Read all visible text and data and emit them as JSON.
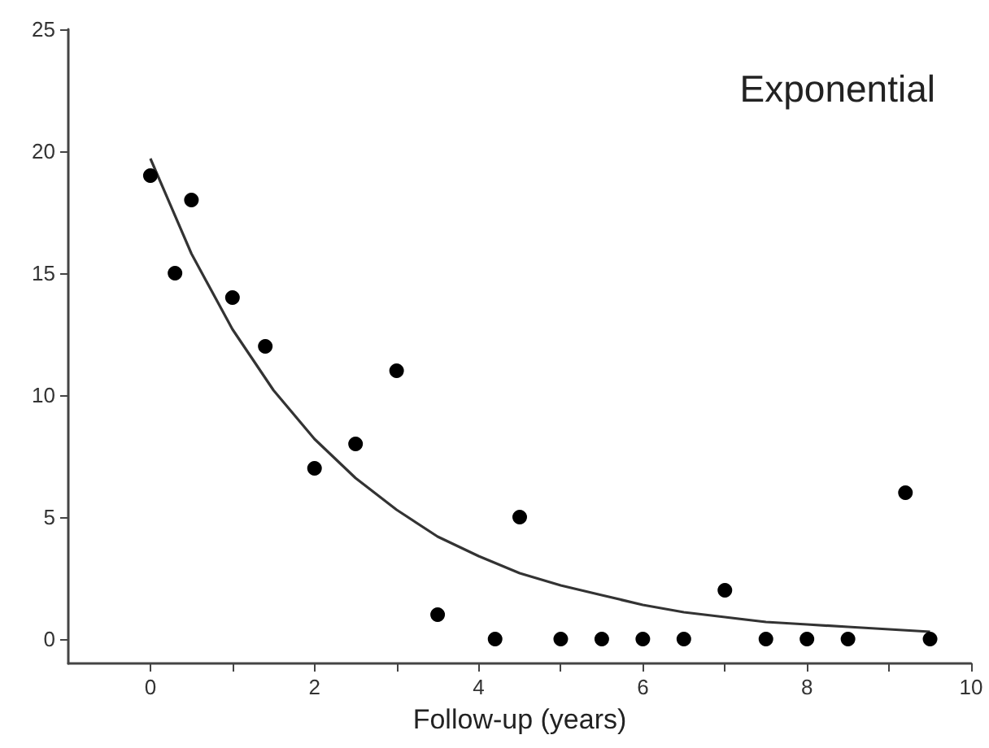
{
  "chart_data": {
    "type": "scatter",
    "title": "Exponential",
    "xlabel": "Follow-up (years)",
    "xlim": [
      -1,
      10
    ],
    "xticks": [
      0,
      {
        "value": 1,
        "label": null
      },
      2,
      {
        "value": 3,
        "label": null
      },
      4,
      {
        "value": 5,
        "label": null
      },
      6,
      {
        "value": 7,
        "label": null
      },
      8,
      {
        "value": 9,
        "label": null
      },
      10
    ],
    "ylim": [
      -1,
      25
    ],
    "yticks": [
      0,
      5,
      10,
      15,
      20,
      25
    ],
    "grid": false,
    "marker": "circle",
    "series": [
      {
        "color": "#000000",
        "x": [
          0,
          0.3,
          0.5,
          1,
          1.4,
          2,
          2.5,
          3,
          3.5,
          4.2,
          4.5,
          5,
          5.5,
          6,
          6.5,
          7,
          7.5,
          8,
          8.5,
          9.2,
          9.5
        ],
        "values": [
          19,
          15,
          18,
          14,
          12,
          7,
          8,
          11,
          1,
          0,
          5,
          0,
          0,
          0,
          0,
          2,
          0,
          0,
          0,
          6,
          0
        ]
      },
      {
        "type": "line",
        "color": "#333333",
        "marker": "none",
        "line_style": "solid",
        "x": [
          0,
          0.5,
          1,
          1.5,
          2,
          2.5,
          3,
          3.5,
          4,
          4.5,
          5,
          5.5,
          6,
          6.5,
          7,
          7.5,
          8,
          8.5,
          9,
          9.5
        ],
        "values": [
          19.7,
          15.8,
          12.7,
          10.2,
          8.2,
          6.6,
          5.3,
          4.2,
          3.4,
          2.7,
          2.2,
          1.8,
          1.4,
          1.1,
          0.9,
          0.7,
          0.6,
          0.5,
          0.4,
          0.3
        ]
      }
    ]
  }
}
